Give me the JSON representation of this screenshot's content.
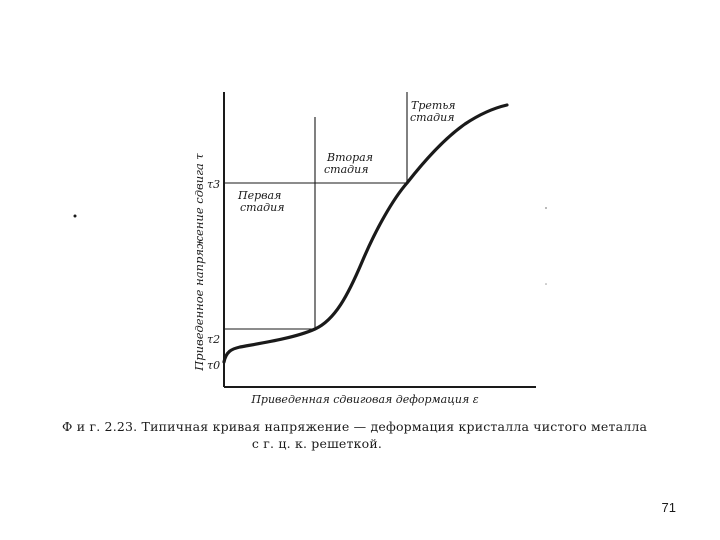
{
  "figure": {
    "ylabel": "Приведенное напряжение сдвига τ",
    "xlabel": "Приведенная сдвиговая деформация ε",
    "tick_labels": {
      "tau3": "τ3",
      "tau2": "τ2",
      "tau0": "τ0"
    },
    "stages": {
      "first": [
        "Первая",
        "стадия"
      ],
      "second": [
        "Вторая",
        "стадия"
      ],
      "third": [
        "Третья",
        "стадия"
      ]
    },
    "colors": {
      "ink": "#1a1a1a",
      "paper": "#ffffff"
    }
  },
  "caption": {
    "line1": "Ф и г.  2.23.  Типичная  кривая  напряжение — деформация  кристалла  чистого  металла",
    "line2": "с  г. ц. к.  решеткой."
  },
  "page_number": "71"
}
